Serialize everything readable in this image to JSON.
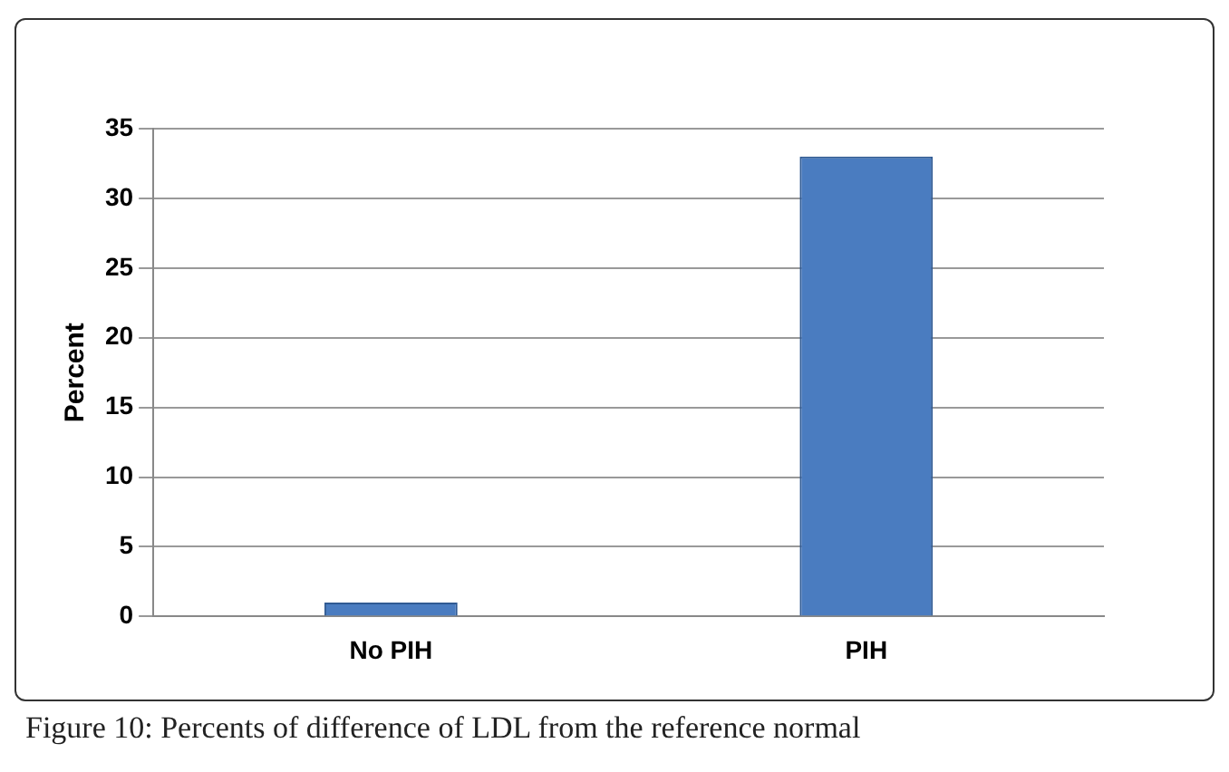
{
  "chart_data": {
    "type": "bar",
    "ylabel": "Percent",
    "categories": [
      "No PIH",
      "PIH"
    ],
    "values": [
      1,
      33
    ],
    "color": "#4a7cc0",
    "ylim": [
      0,
      35
    ],
    "yticks": [
      0,
      5,
      10,
      15,
      20,
      25,
      30,
      35
    ],
    "grid": "y",
    "legend": false,
    "annotations": [
      "Figure 10: Percents of difference of LDL from the reference normal"
    ]
  }
}
